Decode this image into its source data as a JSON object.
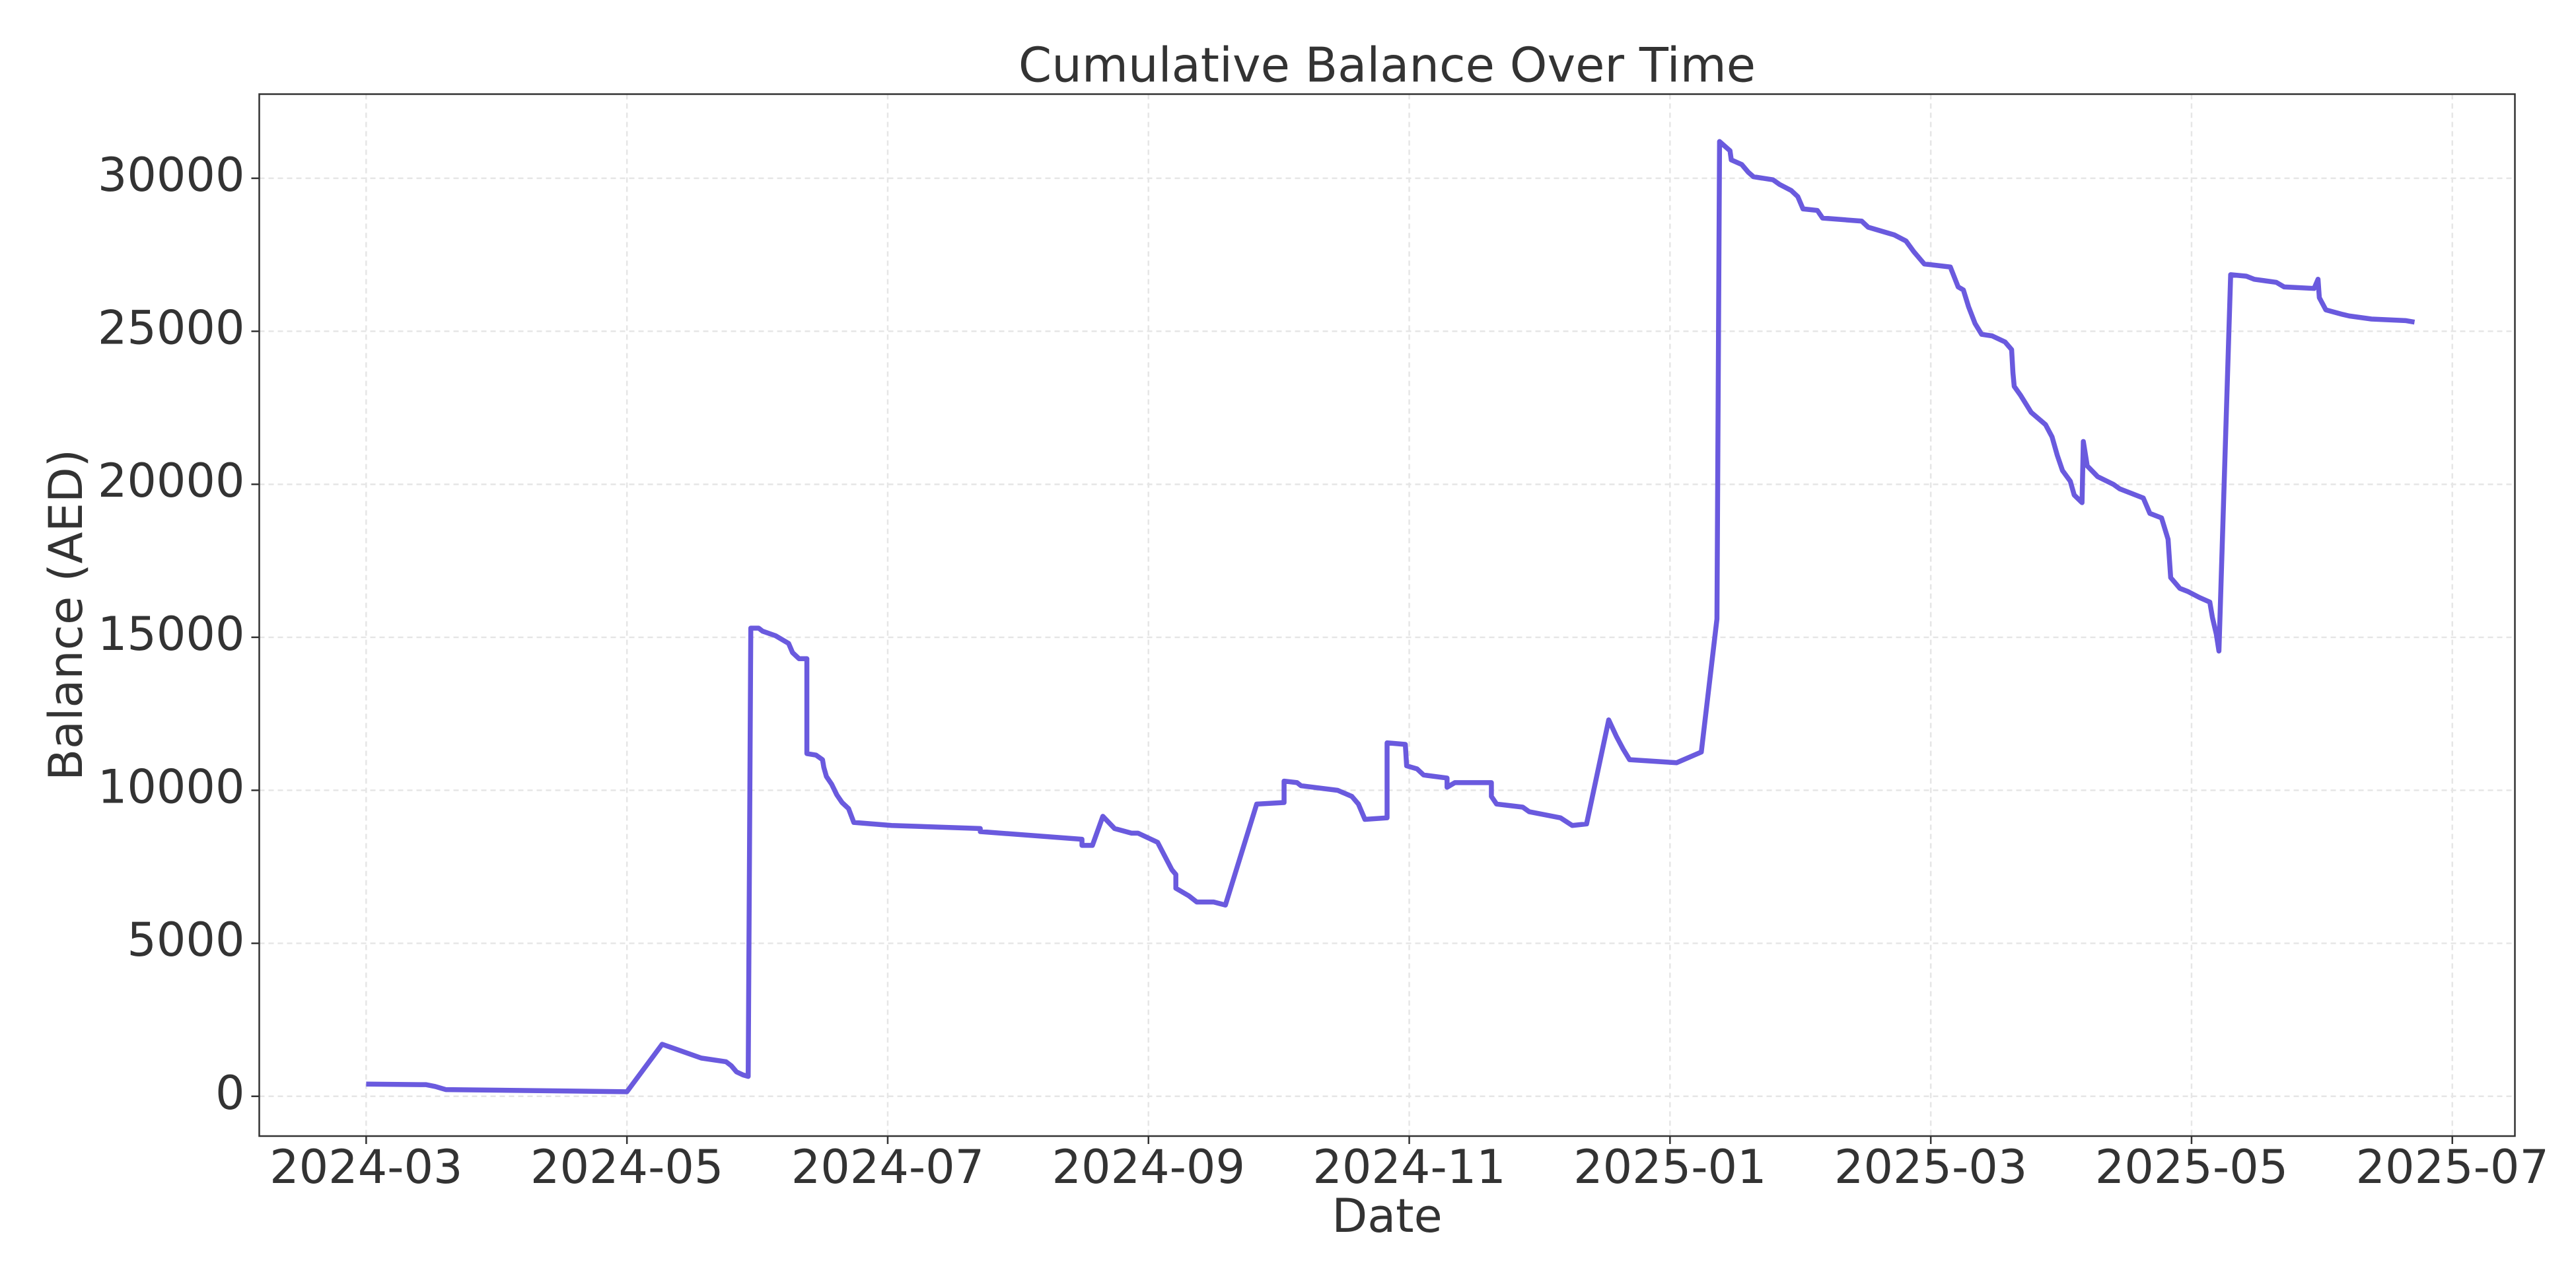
{
  "chart_data": {
    "type": "line",
    "title": "Cumulative Balance Over Time",
    "xlabel": "Date",
    "ylabel": "Balance (AED)",
    "xlim": [
      -0.82,
      16.48
    ],
    "ylim": [
      -1300,
      32750
    ],
    "xticks": [
      {
        "value": 0,
        "label": "2024-03"
      },
      {
        "value": 2,
        "label": "2024-05"
      },
      {
        "value": 4,
        "label": "2024-07"
      },
      {
        "value": 6,
        "label": "2024-09"
      },
      {
        "value": 8,
        "label": "2024-11"
      },
      {
        "value": 10,
        "label": "2025-01"
      },
      {
        "value": 12,
        "label": "2025-03"
      },
      {
        "value": 14,
        "label": "2025-05"
      },
      {
        "value": 16,
        "label": "2025-07"
      }
    ],
    "yticks": [
      0,
      5000,
      10000,
      15000,
      20000,
      25000,
      30000
    ],
    "grid": true,
    "series": [
      {
        "color": "#6a5ade",
        "x": [
          0,
          0.46,
          0.53,
          0.61,
          2.0,
          2.27,
          2.57,
          2.76,
          2.8,
          2.84,
          2.89,
          2.93,
          2.95,
          3.01,
          3.04,
          3.14,
          3.24,
          3.27,
          3.32,
          3.38,
          3.38,
          3.45,
          3.5,
          3.51,
          3.53,
          3.57,
          3.61,
          3.65,
          3.7,
          3.74,
          4.03,
          4.71,
          4.71,
          5.49,
          5.49,
          5.57,
          5.65,
          5.74,
          5.87,
          5.92,
          6.07,
          6.18,
          6.21,
          6.21,
          6.31,
          6.37,
          6.5,
          6.59,
          6.83,
          7.04,
          7.04,
          7.14,
          7.17,
          7.45,
          7.56,
          7.61,
          7.66,
          7.83,
          7.83,
          7.97,
          7.98,
          8.06,
          8.11,
          8.29,
          8.29,
          8.35,
          8.63,
          8.63,
          8.67,
          8.87,
          8.92,
          9.16,
          9.25,
          9.36,
          9.53,
          9.59,
          9.64,
          9.69,
          10.05,
          10.24,
          10.36,
          10.38,
          10.46,
          10.47,
          10.55,
          10.6,
          10.64,
          10.79,
          10.84,
          10.93,
          10.98,
          11.02,
          11.13,
          11.17,
          11.47,
          11.52,
          11.72,
          11.81,
          11.87,
          11.95,
          12.15,
          12.21,
          12.25,
          12.29,
          12.34,
          12.39,
          12.47,
          12.57,
          12.62,
          12.63,
          12.64,
          12.69,
          12.77,
          12.88,
          12.93,
          12.97,
          13.01,
          13.07,
          13.1,
          13.16,
          13.17,
          13.2,
          13.28,
          13.4,
          13.45,
          13.63,
          13.68,
          13.77,
          13.82,
          13.84,
          13.91,
          13.97,
          14.06,
          14.14,
          14.16,
          14.19,
          14.21,
          14.3,
          14.42,
          14.48,
          14.65,
          14.71,
          14.94,
          14.97,
          14.98,
          15.03,
          15.16,
          15.21,
          15.38,
          15.64,
          15.71
        ],
        "values": [
          400,
          380,
          320,
          220,
          150,
          1700,
          1250,
          1130,
          1000,
          800,
          700,
          650,
          15300,
          15300,
          15200,
          15050,
          14800,
          14500,
          14300,
          14300,
          11200,
          11150,
          11000,
          10750,
          10450,
          10200,
          9850,
          9600,
          9400,
          8950,
          8850,
          8750,
          8650,
          8400,
          8200,
          8200,
          9150,
          8750,
          8600,
          8600,
          8300,
          7400,
          7250,
          6800,
          6550,
          6350,
          6350,
          6250,
          9550,
          9600,
          10300,
          10250,
          10150,
          10000,
          9800,
          9550,
          9050,
          9100,
          11550,
          11500,
          10800,
          10700,
          10500,
          10400,
          10100,
          10250,
          10250,
          9800,
          9550,
          9450,
          9300,
          9100,
          8850,
          8900,
          12300,
          11750,
          11350,
          11000,
          10900,
          11250,
          15600,
          31200,
          30900,
          30600,
          30450,
          30200,
          30050,
          29950,
          29800,
          29600,
          29400,
          29000,
          28950,
          28700,
          28600,
          28400,
          28150,
          27950,
          27600,
          27200,
          27100,
          26450,
          26350,
          25800,
          25250,
          24900,
          24850,
          24650,
          24400,
          23650,
          23200,
          22900,
          22350,
          21950,
          21550,
          20950,
          20450,
          20100,
          19650,
          19400,
          21400,
          20600,
          20250,
          20000,
          19850,
          19550,
          19050,
          18900,
          18200,
          16950,
          16600,
          16500,
          16300,
          16150,
          15650,
          15100,
          14550,
          26850,
          26800,
          26700,
          26600,
          26450,
          26400,
          26700,
          26100,
          25700,
          25550,
          25500,
          25400,
          25350,
          25300
        ]
      }
    ]
  }
}
